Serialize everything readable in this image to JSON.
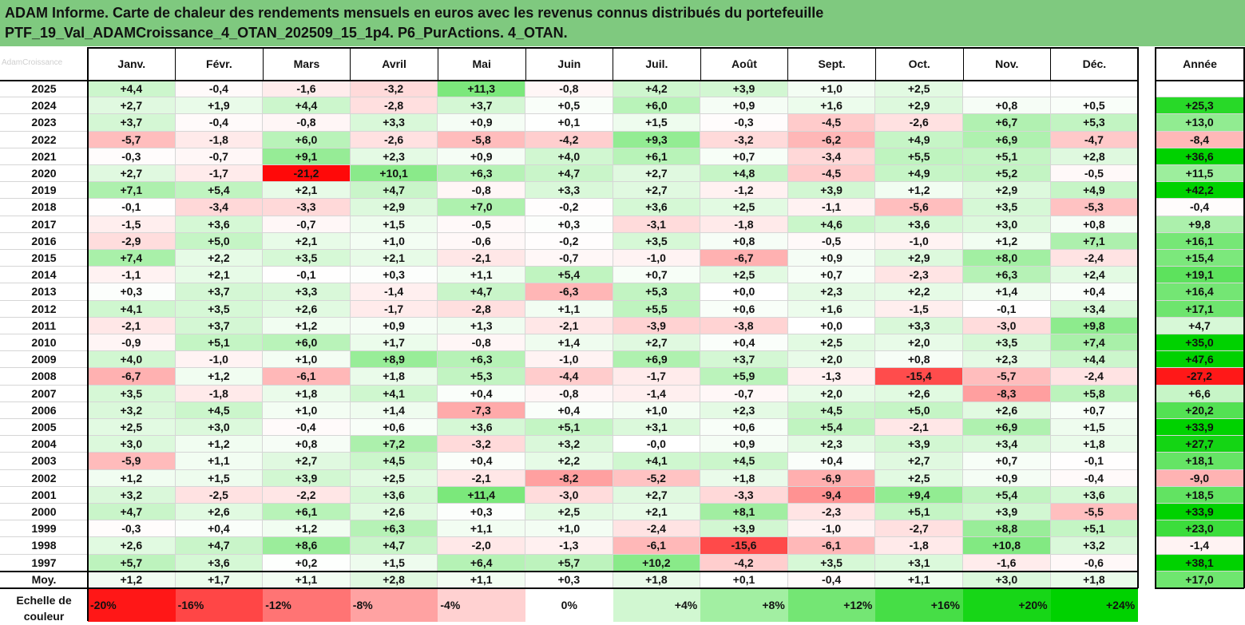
{
  "title": {
    "line1": "ADAM Informe. Carte de chaleur des rendements mensuels en euros avec les revenus connus distribués du portefeuille",
    "line2": "PTF_19_Val_ADAMCroissance_4_OTAN_202509_15_1p4. P6_PurActions. 4_OTAN."
  },
  "watermark": "AdamCroissance",
  "colors": {
    "positive": "#00d200",
    "negative": "#ff0000",
    "neutral": "#ffffff",
    "title_bg": "#7fc97f"
  },
  "chart_data": {
    "type": "heatmap",
    "columns": [
      "Janv.",
      "Févr.",
      "Mars",
      "Avril",
      "Mai",
      "Juin",
      "Juil.",
      "Août",
      "Sept.",
      "Oct.",
      "Nov.",
      "Déc."
    ],
    "annual_header": "Année",
    "rows": [
      {
        "year": "2025",
        "values": [
          "+4,4",
          "-0,4",
          "-1,6",
          "-3,2",
          "+11,3",
          "-0,8",
          "+4,2",
          "+3,9",
          "+1,0",
          "+2,5",
          "",
          ""
        ],
        "annual": ""
      },
      {
        "year": "2024",
        "values": [
          "+2,7",
          "+1,9",
          "+4,4",
          "-2,8",
          "+3,7",
          "+0,5",
          "+6,0",
          "+0,9",
          "+1,6",
          "+2,9",
          "+0,8",
          "+0,5"
        ],
        "annual": "+25,3"
      },
      {
        "year": "2023",
        "values": [
          "+3,7",
          "-0,4",
          "-0,8",
          "+3,3",
          "+0,9",
          "+0,1",
          "+1,5",
          "-0,3",
          "-4,5",
          "-2,6",
          "+6,7",
          "+5,3"
        ],
        "annual": "+13,0"
      },
      {
        "year": "2022",
        "values": [
          "-5,7",
          "-1,8",
          "+6,0",
          "-2,6",
          "-5,8",
          "-4,2",
          "+9,3",
          "-3,2",
          "-6,2",
          "+4,9",
          "+6,9",
          "-4,7"
        ],
        "annual": "-8,4"
      },
      {
        "year": "2021",
        "values": [
          "-0,3",
          "-0,7",
          "+9,1",
          "+2,3",
          "+0,9",
          "+4,0",
          "+6,1",
          "+0,7",
          "-3,4",
          "+5,5",
          "+5,1",
          "+2,8"
        ],
        "annual": "+36,6"
      },
      {
        "year": "2020",
        "values": [
          "+2,7",
          "-1,7",
          "-21,2",
          "+10,1",
          "+6,3",
          "+4,7",
          "+2,7",
          "+4,8",
          "-4,5",
          "+4,9",
          "+5,2",
          "-0,5"
        ],
        "annual": "+11,5"
      },
      {
        "year": "2019",
        "values": [
          "+7,1",
          "+5,4",
          "+2,1",
          "+4,7",
          "-0,8",
          "+3,3",
          "+2,7",
          "-1,2",
          "+3,9",
          "+1,2",
          "+2,9",
          "+4,9"
        ],
        "annual": "+42,2"
      },
      {
        "year": "2018",
        "values": [
          "-0,1",
          "-3,4",
          "-3,3",
          "+2,9",
          "+7,0",
          "-0,2",
          "+3,6",
          "+2,5",
          "-1,1",
          "-5,6",
          "+3,5",
          "-5,3"
        ],
        "annual": "-0,4"
      },
      {
        "year": "2017",
        "values": [
          "-1,5",
          "+3,6",
          "-0,7",
          "+1,5",
          "-0,5",
          "+0,3",
          "-3,1",
          "-1,8",
          "+4,6",
          "+3,6",
          "+3,0",
          "+0,8"
        ],
        "annual": "+9,8"
      },
      {
        "year": "2016",
        "values": [
          "-2,9",
          "+5,0",
          "+2,1",
          "+1,0",
          "-0,6",
          "-0,2",
          "+3,5",
          "+0,8",
          "-0,5",
          "-1,0",
          "+1,2",
          "+7,1"
        ],
        "annual": "+16,1"
      },
      {
        "year": "2015",
        "values": [
          "+7,4",
          "+2,2",
          "+3,5",
          "+2,1",
          "-2,1",
          "-0,7",
          "-1,0",
          "-6,7",
          "+0,9",
          "+2,9",
          "+8,0",
          "-2,4"
        ],
        "annual": "+15,4"
      },
      {
        "year": "2014",
        "values": [
          "-1,1",
          "+2,1",
          "-0,1",
          "+0,3",
          "+1,1",
          "+5,4",
          "+0,7",
          "+2,5",
          "+0,7",
          "-2,3",
          "+6,3",
          "+2,4"
        ],
        "annual": "+19,1"
      },
      {
        "year": "2013",
        "values": [
          "+0,3",
          "+3,7",
          "+3,3",
          "-1,4",
          "+4,7",
          "-6,3",
          "+5,3",
          "+0,0",
          "+2,3",
          "+2,2",
          "+1,4",
          "+0,4"
        ],
        "annual": "+16,4"
      },
      {
        "year": "2012",
        "values": [
          "+4,1",
          "+3,5",
          "+2,6",
          "-1,7",
          "-2,8",
          "+1,1",
          "+5,5",
          "+0,6",
          "+1,6",
          "-1,5",
          "-0,1",
          "+3,4"
        ],
        "annual": "+17,1"
      },
      {
        "year": "2011",
        "values": [
          "-2,1",
          "+3,7",
          "+1,2",
          "+0,9",
          "+1,3",
          "-2,1",
          "-3,9",
          "-3,8",
          "+0,0",
          "+3,3",
          "-3,0",
          "+9,8"
        ],
        "annual": "+4,7"
      },
      {
        "year": "2010",
        "values": [
          "-0,9",
          "+5,1",
          "+6,0",
          "+1,7",
          "-0,8",
          "+1,4",
          "+2,7",
          "+0,4",
          "+2,5",
          "+2,0",
          "+3,5",
          "+7,4"
        ],
        "annual": "+35,0"
      },
      {
        "year": "2009",
        "values": [
          "+4,0",
          "-1,0",
          "+1,0",
          "+8,9",
          "+6,3",
          "-1,0",
          "+6,9",
          "+3,7",
          "+2,0",
          "+0,8",
          "+2,3",
          "+4,4"
        ],
        "annual": "+47,6"
      },
      {
        "year": "2008",
        "values": [
          "-6,7",
          "+1,2",
          "-6,1",
          "+1,8",
          "+5,3",
          "-4,4",
          "-1,7",
          "+5,9",
          "-1,3",
          "-15,4",
          "-5,7",
          "-2,4"
        ],
        "annual": "-27,2"
      },
      {
        "year": "2007",
        "values": [
          "+3,5",
          "-1,8",
          "+1,8",
          "+4,1",
          "+0,4",
          "-0,8",
          "-1,4",
          "-0,7",
          "+2,0",
          "+2,6",
          "-8,3",
          "+5,8"
        ],
        "annual": "+6,6"
      },
      {
        "year": "2006",
        "values": [
          "+3,2",
          "+4,5",
          "+1,0",
          "+1,4",
          "-7,3",
          "+0,4",
          "+1,0",
          "+2,3",
          "+4,5",
          "+5,0",
          "+2,6",
          "+0,7"
        ],
        "annual": "+20,2"
      },
      {
        "year": "2005",
        "values": [
          "+2,5",
          "+3,0",
          "-0,4",
          "+0,6",
          "+3,6",
          "+5,1",
          "+3,1",
          "+0,6",
          "+5,4",
          "-2,1",
          "+6,9",
          "+1,5"
        ],
        "annual": "+33,9"
      },
      {
        "year": "2004",
        "values": [
          "+3,0",
          "+1,2",
          "+0,8",
          "+7,2",
          "-3,2",
          "+3,2",
          "-0,0",
          "+0,9",
          "+2,3",
          "+3,9",
          "+3,4",
          "+1,8"
        ],
        "annual": "+27,7"
      },
      {
        "year": "2003",
        "values": [
          "-5,9",
          "+1,1",
          "+2,7",
          "+4,5",
          "+0,4",
          "+2,2",
          "+4,1",
          "+4,5",
          "+0,4",
          "+2,7",
          "+0,7",
          "-0,1"
        ],
        "annual": "+18,1"
      },
      {
        "year": "2002",
        "values": [
          "+1,2",
          "+1,5",
          "+3,9",
          "+2,5",
          "-2,1",
          "-8,2",
          "-5,2",
          "+1,8",
          "-6,9",
          "+2,5",
          "+0,9",
          "-0,4"
        ],
        "annual": "-9,0"
      },
      {
        "year": "2001",
        "values": [
          "+3,2",
          "-2,5",
          "-2,2",
          "+3,6",
          "+11,4",
          "-3,0",
          "+2,7",
          "-3,3",
          "-9,4",
          "+9,4",
          "+5,4",
          "+3,6"
        ],
        "annual": "+18,5"
      },
      {
        "year": "2000",
        "values": [
          "+4,7",
          "+2,6",
          "+6,1",
          "+2,6",
          "+0,3",
          "+2,5",
          "+2,1",
          "+8,1",
          "-2,3",
          "+5,1",
          "+3,9",
          "-5,5"
        ],
        "annual": "+33,9"
      },
      {
        "year": "1999",
        "values": [
          "-0,3",
          "+0,4",
          "+1,2",
          "+6,3",
          "+1,1",
          "+1,0",
          "-2,4",
          "+3,9",
          "-1,0",
          "-2,7",
          "+8,8",
          "+5,1"
        ],
        "annual": "+23,0"
      },
      {
        "year": "1998",
        "values": [
          "+2,6",
          "+4,7",
          "+8,6",
          "+4,7",
          "-2,0",
          "-1,3",
          "-6,1",
          "-15,6",
          "-6,1",
          "-1,8",
          "+10,8",
          "+3,2"
        ],
        "annual": "-1,4"
      },
      {
        "year": "1997",
        "values": [
          "+5,7",
          "+3,6",
          "+0,2",
          "+1,5",
          "+6,4",
          "+5,7",
          "+10,2",
          "-4,2",
          "+3,5",
          "+3,1",
          "-1,6",
          "-0,6"
        ],
        "annual": "+38,1"
      }
    ],
    "average": {
      "label": "Moy.",
      "values": [
        "+1,2",
        "+1,7",
        "+1,1",
        "+2,8",
        "+1,1",
        "+0,3",
        "+1,8",
        "+0,1",
        "-0,4",
        "+1,1",
        "+3,0",
        "+1,8"
      ],
      "annual": "+17,0"
    },
    "scale": {
      "label": "Echelle de couleur",
      "labels": [
        "-20%",
        "-16%",
        "-12%",
        "-8%",
        "-4%",
        "0%",
        "+4%",
        "+8%",
        "+12%",
        "+16%",
        "+20%",
        "+24%"
      ],
      "values": [
        -20,
        -16,
        -12,
        -8,
        -4,
        0,
        4,
        8,
        12,
        16,
        20,
        24
      ]
    }
  }
}
